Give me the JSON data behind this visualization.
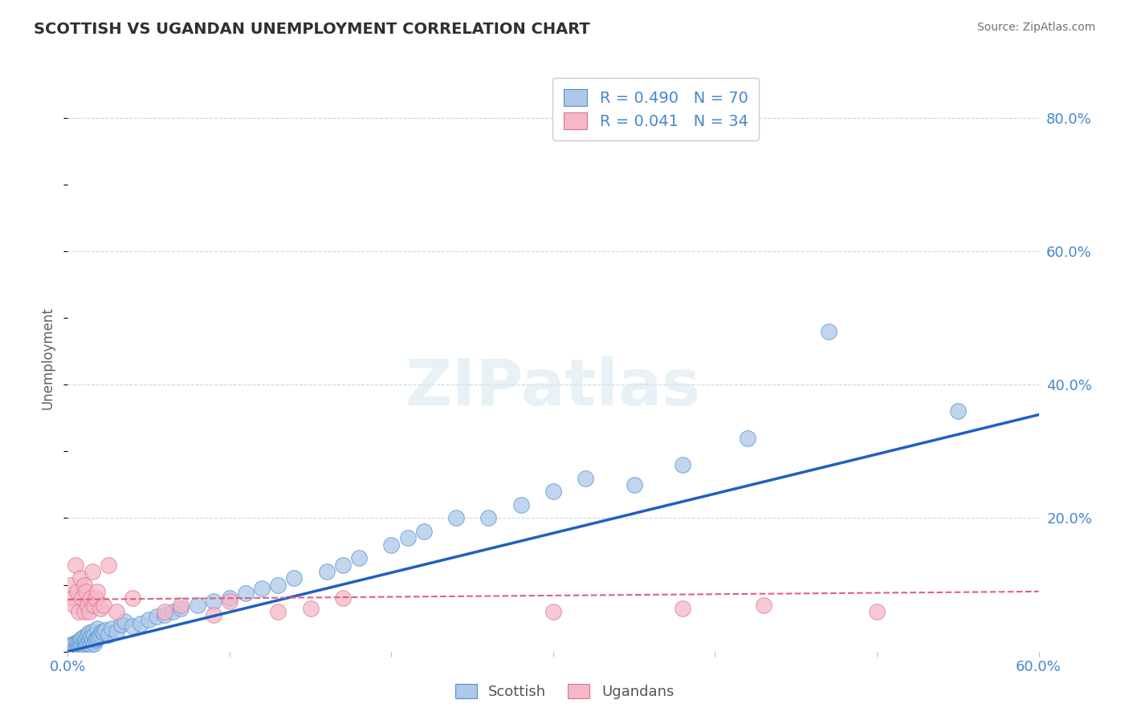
{
  "title": "SCOTTISH VS UGANDAN UNEMPLOYMENT CORRELATION CHART",
  "source": "Source: ZipAtlas.com",
  "ylabel": "Unemployment",
  "xlim": [
    0.0,
    0.6
  ],
  "ylim": [
    0.0,
    0.88
  ],
  "xticks": [
    0.0,
    0.1,
    0.2,
    0.3,
    0.4,
    0.5,
    0.6
  ],
  "xtick_labels": [
    "0.0%",
    "",
    "",
    "",
    "",
    "",
    "60.0%"
  ],
  "ytick_labels": [
    "",
    "20.0%",
    "40.0%",
    "60.0%",
    "80.0%"
  ],
  "yticks": [
    0.0,
    0.2,
    0.4,
    0.6,
    0.8
  ],
  "blue_R": 0.49,
  "blue_N": 70,
  "pink_R": 0.041,
  "pink_N": 34,
  "blue_color": "#adc8e8",
  "pink_color": "#f4b8c8",
  "blue_edge_color": "#5090d0",
  "pink_edge_color": "#e07090",
  "blue_line_color": "#2060c0",
  "pink_line_color": "#e06080",
  "legend_label_blue": "Scottish",
  "legend_label_pink": "Ugandans",
  "watermark": "ZIPatlas",
  "background_color": "#ffffff",
  "grid_color": "#c8d8e8",
  "title_color": "#303030",
  "axis_color": "#4488cc",
  "blue_scatter_x": [
    0.002,
    0.003,
    0.004,
    0.005,
    0.006,
    0.006,
    0.007,
    0.007,
    0.008,
    0.008,
    0.009,
    0.009,
    0.01,
    0.01,
    0.01,
    0.011,
    0.011,
    0.012,
    0.012,
    0.013,
    0.013,
    0.014,
    0.014,
    0.015,
    0.015,
    0.016,
    0.016,
    0.017,
    0.018,
    0.018,
    0.019,
    0.02,
    0.021,
    0.022,
    0.023,
    0.025,
    0.027,
    0.03,
    0.033,
    0.035,
    0.04,
    0.045,
    0.05,
    0.055,
    0.06,
    0.065,
    0.07,
    0.08,
    0.09,
    0.1,
    0.11,
    0.12,
    0.13,
    0.14,
    0.16,
    0.17,
    0.18,
    0.2,
    0.21,
    0.22,
    0.24,
    0.26,
    0.28,
    0.3,
    0.32,
    0.35,
    0.38,
    0.42,
    0.47,
    0.55
  ],
  "blue_scatter_y": [
    0.01,
    0.008,
    0.012,
    0.006,
    0.009,
    0.014,
    0.008,
    0.015,
    0.01,
    0.018,
    0.012,
    0.02,
    0.008,
    0.015,
    0.022,
    0.01,
    0.018,
    0.012,
    0.025,
    0.015,
    0.028,
    0.01,
    0.022,
    0.015,
    0.03,
    0.012,
    0.025,
    0.018,
    0.02,
    0.035,
    0.022,
    0.025,
    0.03,
    0.028,
    0.032,
    0.025,
    0.035,
    0.03,
    0.04,
    0.045,
    0.038,
    0.042,
    0.048,
    0.052,
    0.055,
    0.06,
    0.065,
    0.07,
    0.075,
    0.08,
    0.088,
    0.095,
    0.1,
    0.11,
    0.12,
    0.13,
    0.14,
    0.16,
    0.17,
    0.18,
    0.2,
    0.2,
    0.22,
    0.24,
    0.26,
    0.25,
    0.28,
    0.32,
    0.48,
    0.36
  ],
  "pink_scatter_x": [
    0.002,
    0.003,
    0.004,
    0.005,
    0.006,
    0.007,
    0.008,
    0.009,
    0.01,
    0.01,
    0.011,
    0.012,
    0.013,
    0.014,
    0.015,
    0.016,
    0.017,
    0.018,
    0.02,
    0.022,
    0.025,
    0.03,
    0.04,
    0.06,
    0.07,
    0.09,
    0.1,
    0.13,
    0.15,
    0.17,
    0.3,
    0.38,
    0.43,
    0.5
  ],
  "pink_scatter_y": [
    0.1,
    0.08,
    0.07,
    0.13,
    0.09,
    0.06,
    0.11,
    0.08,
    0.06,
    0.1,
    0.09,
    0.07,
    0.06,
    0.08,
    0.12,
    0.07,
    0.08,
    0.09,
    0.065,
    0.07,
    0.13,
    0.06,
    0.08,
    0.06,
    0.07,
    0.055,
    0.075,
    0.06,
    0.065,
    0.08,
    0.06,
    0.065,
    0.07,
    0.06
  ],
  "blue_line_x0": 0.0,
  "blue_line_y0": 0.0,
  "blue_line_x1": 0.6,
  "blue_line_y1": 0.355,
  "pink_line_x0": 0.0,
  "pink_line_y0": 0.078,
  "pink_line_x1": 0.6,
  "pink_line_y1": 0.09
}
